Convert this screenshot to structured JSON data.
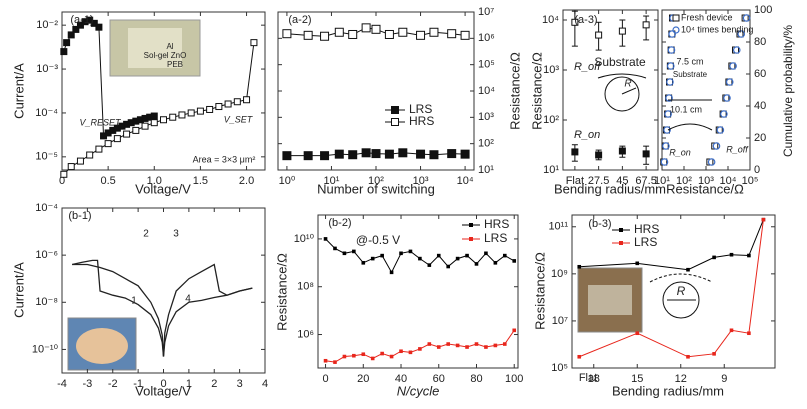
{
  "chart_data": [
    {
      "id": "a1",
      "type": "line",
      "panel_label": "(a-1)",
      "xlabel": "Voltage/V",
      "ylabel": "Current/A",
      "xlim": [
        0,
        2.2
      ],
      "ylim_log10": [
        -5.3,
        -1.7
      ],
      "y_scale": "log",
      "xticks": [
        "0",
        "0.5",
        "1.0",
        "1.5",
        "2.0"
      ],
      "yticks": [
        "10⁻⁵",
        "10⁻⁴",
        "10⁻³",
        "10⁻²"
      ],
      "annotations": [
        "V_RESET",
        "V_SET",
        "Area = 3×3 μm²"
      ],
      "inset_text": [
        "Al",
        "Sol-gel ZnO",
        "PEB"
      ],
      "series": [
        {
          "marker": "filled-square",
          "x": [
            0.02,
            0.05,
            0.1,
            0.15,
            0.2,
            0.25,
            0.3,
            0.35,
            0.4,
            0.45,
            0.5,
            0.55,
            0.6,
            0.65,
            0.7,
            0.75,
            0.8,
            0.85,
            0.9,
            0.95,
            1.0
          ],
          "y": [
            0.0025,
            0.004,
            0.006,
            0.008,
            0.01,
            0.012,
            0.013,
            0.011,
            0.009,
            3e-05,
            3.5e-05,
            4e-05,
            4.5e-05,
            5e-05,
            5.5e-05,
            6e-05,
            6.5e-05,
            7e-05,
            7.5e-05,
            8e-05,
            8.5e-05
          ]
        },
        {
          "marker": "open-square",
          "x": [
            0.02,
            0.1,
            0.2,
            0.3,
            0.4,
            0.5,
            0.6,
            0.7,
            0.8,
            0.9,
            1.0,
            1.1,
            1.2,
            1.3,
            1.4,
            1.5,
            1.6,
            1.7,
            1.8,
            1.9,
            2.0,
            2.08
          ],
          "y": [
            4e-06,
            6e-06,
            8e-06,
            1.1e-05,
            1.5e-05,
            2e-05,
            2.6e-05,
            3.3e-05,
            4e-05,
            5e-05,
            6e-05,
            7e-05,
            8e-05,
            9e-05,
            0.0001,
            0.00011,
            0.00012,
            0.00014,
            0.00016,
            0.00018,
            0.0002,
            0.004
          ]
        }
      ]
    },
    {
      "id": "a2",
      "type": "line",
      "panel_label": "(a-2)",
      "xlabel": "Number of switching",
      "ylabel": "Resistance/Ω",
      "x_scale": "log",
      "y_scale": "log",
      "xlim_log10": [
        -0.2,
        4.2
      ],
      "ylim_log10": [
        1,
        7
      ],
      "xticks": [
        "10⁰",
        "10¹",
        "10²",
        "10³",
        "10⁴"
      ],
      "yticks": [
        "10¹",
        "10²",
        "10³",
        "10⁴",
        "10⁵",
        "10⁶",
        "10⁷"
      ],
      "legend": {
        "position": "center-right",
        "entries": [
          "LRS",
          "HRS"
        ]
      },
      "series": [
        {
          "name": "LRS",
          "marker": "filled-square",
          "x": [
            1,
            3,
            7,
            15,
            30,
            60,
            100,
            200,
            400,
            1000,
            2000,
            5000,
            10000
          ],
          "y": [
            35,
            35,
            35,
            40,
            38,
            45,
            42,
            40,
            45,
            40,
            38,
            42,
            40
          ]
        },
        {
          "name": "HRS",
          "marker": "open-square",
          "x": [
            1,
            3,
            7,
            15,
            30,
            60,
            100,
            200,
            400,
            1000,
            2000,
            5000,
            10000
          ],
          "y": [
            1500000,
            1300000,
            1200000,
            1700000,
            1400000,
            2500000,
            2200000,
            1400000,
            1700000,
            1300000,
            1700000,
            1500000,
            1300000
          ]
        }
      ]
    },
    {
      "id": "a3a",
      "type": "scatter",
      "panel_label": "(a-3)",
      "xlabel": "Bending radius/mm",
      "ylabel": "Resistance/Ω",
      "y_scale": "log",
      "categories": [
        "Flat",
        "27.5",
        "45",
        "67.5"
      ],
      "ylim_log10": [
        1,
        4.2
      ],
      "yticks": [
        "10¹",
        "10²",
        "10³",
        "10⁴"
      ],
      "labels": [
        "R_off",
        "R_on",
        "Substrate",
        "R"
      ],
      "series": [
        {
          "name": "R_off",
          "marker": "open-square",
          "values": [
            9000,
            5000,
            6000,
            8000
          ],
          "err_low": [
            3000,
            2500,
            3000,
            4000
          ],
          "err_high": [
            15000,
            9000,
            10000,
            12000
          ]
        },
        {
          "name": "R_on",
          "marker": "filled-square",
          "values": [
            23,
            20,
            24,
            21
          ],
          "err_low": [
            15,
            16,
            18,
            13
          ],
          "err_high": [
            32,
            25,
            30,
            30
          ]
        }
      ]
    },
    {
      "id": "a3b",
      "type": "scatter",
      "xlabel": "Resistance/Ω",
      "ylabel": "Cumulative probability/%",
      "x_scale": "log",
      "xlim_log10": [
        1,
        5
      ],
      "ylim": [
        0,
        100
      ],
      "xticks": [
        "10¹",
        "10²",
        "10³",
        "10⁴",
        "10⁵"
      ],
      "yticks": [
        "0",
        "20",
        "40",
        "60",
        "80",
        "100"
      ],
      "legend": {
        "position": "top",
        "entries": [
          "Fresh device",
          "10⁴ times bending"
        ]
      },
      "labels": [
        "R_on",
        "R_off",
        "7.5 cm",
        "10.1 cm",
        "Substrate"
      ],
      "series": [
        {
          "name": "Fresh device",
          "marker": "open-square",
          "x": [
            12,
            14,
            16,
            18,
            20,
            22,
            24,
            26,
            28,
            30,
            1500,
            2500,
            4000,
            6000,
            8000,
            11000,
            15000,
            22000,
            35000,
            60000
          ],
          "y": [
            5,
            15,
            25,
            35,
            45,
            55,
            65,
            75,
            85,
            95,
            5,
            15,
            25,
            35,
            45,
            55,
            65,
            75,
            85,
            95
          ]
        },
        {
          "name": "10⁴ times bending",
          "marker": "open-circle",
          "x": [
            13,
            15,
            17,
            19,
            21,
            23,
            25,
            27,
            29,
            32,
            1800,
            3000,
            4500,
            6500,
            9000,
            12000,
            17000,
            25000,
            40000,
            70000
          ],
          "y": [
            5,
            15,
            25,
            35,
            45,
            55,
            65,
            75,
            85,
            95,
            5,
            15,
            25,
            35,
            45,
            55,
            65,
            75,
            85,
            95
          ]
        }
      ]
    },
    {
      "id": "b1",
      "type": "line",
      "panel_label": "(b-1)",
      "xlabel": "Voltage/V",
      "ylabel": "Current/A",
      "y_scale": "log",
      "xlim": [
        -4,
        4
      ],
      "ylim_log10": [
        -11,
        -4
      ],
      "xticks": [
        "-4",
        "-3",
        "-2",
        "-1",
        "0",
        "1",
        "2",
        "3",
        "4"
      ],
      "yticks": [
        "10⁻¹⁰",
        "10⁻⁸",
        "10⁻⁶",
        "10⁻⁴"
      ],
      "arrow_labels": [
        "1",
        "2",
        "3",
        "4"
      ],
      "series": [
        {
          "name": "sweep",
          "x": [
            -3.6,
            -3.2,
            -2.8,
            -2.6,
            -2.5,
            -2,
            -1.5,
            -1,
            -0.5,
            -0.2,
            -0.05,
            0,
            0.05,
            0.2,
            0.5,
            1,
            1.5,
            2,
            2.5,
            3,
            3.5
          ],
          "y": [
            4e-07,
            5e-07,
            6e-07,
            6e-07,
            3e-08,
            2e-08,
            1.5e-08,
            8e-09,
            3e-09,
            8e-10,
            2e-10,
            5e-11,
            2e-10,
            1e-09,
            4e-09,
            1e-08,
            1.2e-08,
            1.6e-08,
            2e-08,
            3e-08,
            4e-08
          ]
        },
        {
          "name": "return",
          "x": [
            -3.6,
            -3,
            -2.5,
            -2,
            -1.5,
            -1,
            -0.5,
            -0.2,
            -0.05,
            0,
            0.05,
            0.2,
            0.5,
            1,
            1.5,
            2,
            2.2,
            2.5,
            3,
            3.5
          ],
          "y": [
            4e-07,
            4e-07,
            3e-07,
            2e-07,
            1e-07,
            5e-08,
            1e-08,
            2e-09,
            4e-10,
            5e-11,
            5e-10,
            3e-09,
            3e-08,
            1e-07,
            2e-07,
            4e-07,
            3e-08,
            2e-08,
            3e-08,
            4e-08
          ]
        }
      ]
    },
    {
      "id": "b2",
      "type": "line",
      "panel_label": "(b-2)",
      "xlabel": "N/cycle",
      "ylabel": "Resistance/Ω",
      "y_scale": "log",
      "xlim": [
        -4,
        102
      ],
      "ylim_log10": [
        4.6,
        11
      ],
      "xticks": [
        "0",
        "20",
        "40",
        "60",
        "80",
        "100"
      ],
      "yticks": [
        "10⁶",
        "10⁸",
        "10¹⁰"
      ],
      "annotations": [
        "@-0.5 V"
      ],
      "legend": {
        "position": "top-right",
        "entries": [
          "HRS",
          "LRS"
        ]
      },
      "series": [
        {
          "name": "HRS",
          "color": "#000000",
          "x": [
            0,
            5,
            10,
            15,
            20,
            25,
            30,
            35,
            40,
            45,
            50,
            55,
            60,
            65,
            70,
            75,
            80,
            85,
            90,
            95,
            100
          ],
          "y": [
            10000000000,
            4000000000,
            2500000000,
            3000000000,
            1000000000,
            1500000000,
            2000000000,
            400000000,
            2500000000,
            3000000000,
            1500000000,
            800000000,
            2000000000,
            700000000,
            1500000000,
            2000000000,
            900000000,
            2500000000,
            1000000000,
            2000000000,
            1200000000
          ]
        },
        {
          "name": "LRS",
          "color": "#e8261c",
          "x": [
            0,
            5,
            10,
            15,
            20,
            25,
            30,
            35,
            40,
            45,
            50,
            55,
            60,
            65,
            70,
            75,
            80,
            85,
            90,
            95,
            100
          ],
          "y": [
            80000,
            70000,
            120000,
            130000,
            150000,
            100000,
            160000,
            120000,
            200000,
            180000,
            250000,
            400000,
            300000,
            400000,
            350000,
            300000,
            400000,
            300000,
            350000,
            400000,
            1500000
          ]
        }
      ]
    },
    {
      "id": "b3",
      "type": "line",
      "panel_label": "(b-3)",
      "xlabel": "Bending radius/mm",
      "ylabel": "Resistance/Ω",
      "y_scale": "log",
      "x_reversed": true,
      "xlim": [
        19.5,
        5.5
      ],
      "ylim_log10": [
        5,
        11.5
      ],
      "xticks": [
        "18",
        "15",
        "12",
        "9"
      ],
      "yticks": [
        "10⁵",
        "10⁷",
        "10⁹",
        "10¹¹"
      ],
      "labels": [
        "Flat",
        "R"
      ],
      "legend": {
        "position": "top-left",
        "entries": [
          "HRS",
          "LRS"
        ]
      },
      "series": [
        {
          "name": "HRS",
          "color": "#000000",
          "x": [
            19,
            15,
            11.5,
            9.7,
            8.5,
            7.3,
            6.3
          ],
          "y": [
            2000000000,
            2800000000,
            1500000000,
            5000000000,
            6500000000,
            6000000000,
            200000000000
          ]
        },
        {
          "name": "LRS",
          "color": "#e8261c",
          "x": [
            19,
            15,
            11.5,
            9.7,
            8.5,
            7.3,
            6.3
          ],
          "y": [
            300000,
            3000000,
            300000,
            400000,
            4000000,
            3000000,
            200000000000
          ]
        }
      ]
    }
  ]
}
